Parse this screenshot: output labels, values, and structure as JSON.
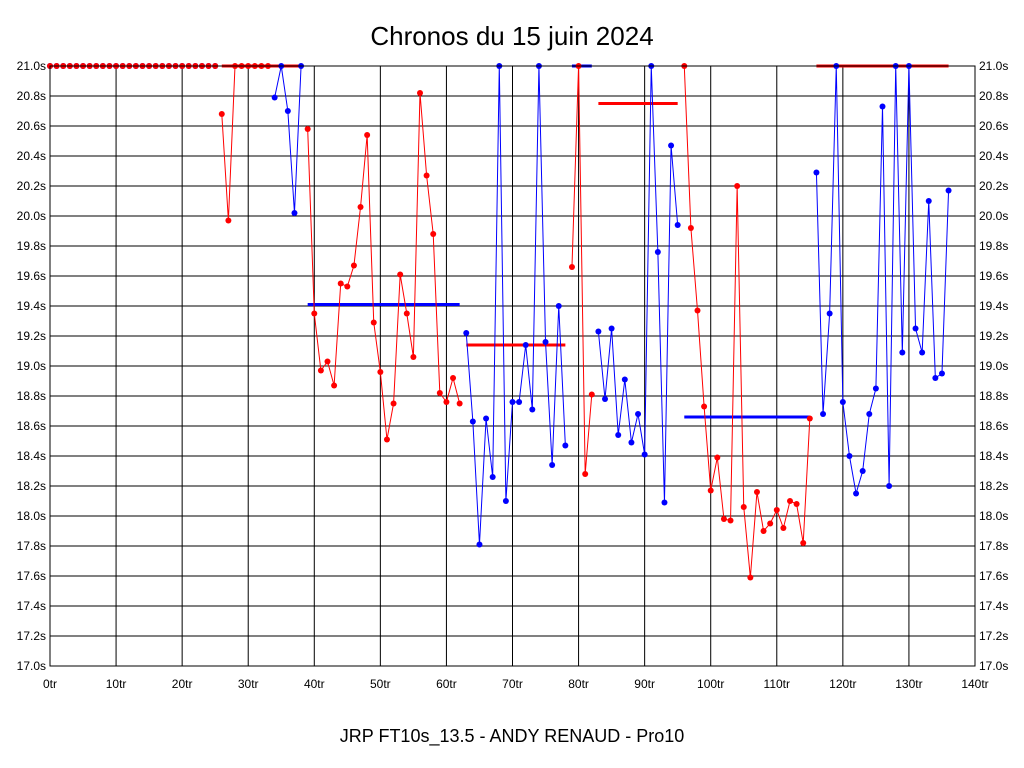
{
  "chart_data": {
    "type": "line",
    "title": "Chronos du 15 juin 2024",
    "subtitle": "JRP FT10s_13.5 - ANDY RENAUD - Pro10",
    "xlim": [
      0,
      140
    ],
    "ylim": [
      17.0,
      21.0
    ],
    "x_ticks": [
      0,
      10,
      20,
      30,
      40,
      50,
      60,
      70,
      80,
      90,
      100,
      110,
      120,
      130,
      140
    ],
    "x_tick_labels": [
      "0tr",
      "10tr",
      "20tr",
      "30tr",
      "40tr",
      "50tr",
      "60tr",
      "70tr",
      "80tr",
      "90tr",
      "100tr",
      "110tr",
      "120tr",
      "130tr",
      "140tr"
    ],
    "y_ticks": [
      17.0,
      17.2,
      17.4,
      17.6,
      17.8,
      18.0,
      18.2,
      18.4,
      18.6,
      18.8,
      19.0,
      19.2,
      19.4,
      19.6,
      19.8,
      20.0,
      20.2,
      20.4,
      20.6,
      20.8,
      21.0
    ],
    "y_tick_labels": [
      "17.0s",
      "17.2s",
      "17.4s",
      "17.6s",
      "17.8s",
      "18.0s",
      "18.2s",
      "18.4s",
      "18.6s",
      "18.8s",
      "19.0s",
      "19.2s",
      "19.4s",
      "19.6s",
      "19.8s",
      "20.0s",
      "20.2s",
      "20.4s",
      "20.6s",
      "20.8s",
      "21.0s"
    ],
    "grid": true,
    "colors": {
      "red": "#ff0000",
      "blue": "#0000ff",
      "axis": "#000000"
    },
    "series": [
      {
        "color": "#0000ff",
        "x": [
          0,
          1,
          2,
          3,
          4,
          5,
          6,
          7,
          8,
          9,
          10,
          11,
          12,
          13,
          14,
          15,
          16,
          17,
          18,
          19,
          20,
          21,
          22,
          23,
          24,
          25
        ],
        "y": [
          21,
          21,
          21,
          21,
          21,
          21,
          21,
          21,
          21,
          21,
          21,
          21,
          21,
          21,
          21,
          21,
          21,
          21,
          21,
          21,
          21,
          21,
          21,
          21,
          21,
          21
        ]
      },
      {
        "color": "#ff0000",
        "x": [
          0,
          1,
          2,
          3,
          4,
          5,
          6,
          7,
          8,
          9,
          10,
          11,
          12,
          13,
          14,
          15,
          16,
          17,
          18,
          19,
          20,
          21,
          22,
          23,
          24,
          25
        ],
        "y": [
          21,
          21,
          21,
          21,
          21,
          21,
          21,
          21,
          21,
          21,
          21,
          21,
          21,
          21,
          21,
          21,
          21,
          21,
          21,
          21,
          21,
          21,
          21,
          21,
          21,
          21
        ]
      },
      {
        "color": "#ff0000",
        "x": [
          26,
          27,
          28,
          29,
          30,
          31,
          32,
          33
        ],
        "y": [
          20.68,
          19.97,
          21.0,
          21.0,
          21.0,
          21.0,
          21.0,
          21.0
        ]
      },
      {
        "color": "#0000ff",
        "x": [
          34,
          35,
          36,
          37,
          38
        ],
        "y": [
          20.79,
          21.0,
          20.7,
          20.02,
          21.0
        ]
      },
      {
        "color": "#ff0000",
        "x": [
          39,
          40,
          41,
          42,
          43,
          44,
          45,
          46,
          47,
          48,
          49,
          50,
          51,
          52,
          53,
          54,
          55,
          56,
          57,
          58,
          59,
          60,
          61,
          62
        ],
        "y": [
          20.58,
          19.35,
          18.97,
          19.03,
          18.87,
          19.55,
          19.53,
          19.67,
          20.06,
          20.54,
          19.29,
          18.96,
          18.51,
          18.75,
          19.61,
          19.35,
          19.06,
          20.82,
          20.27,
          19.88,
          18.82,
          18.76,
          18.92,
          18.75
        ]
      },
      {
        "color": "#0000ff",
        "x": [
          63,
          64,
          65,
          66,
          67,
          68,
          69,
          70,
          71,
          72,
          73,
          74,
          75,
          76,
          77,
          78
        ],
        "y": [
          19.22,
          18.63,
          17.81,
          18.65,
          18.26,
          21.0,
          18.1,
          18.76,
          18.76,
          19.14,
          18.71,
          21.0,
          19.16,
          18.34,
          19.4,
          18.47
        ]
      },
      {
        "color": "#ff0000",
        "x": [
          79,
          80,
          81,
          82
        ],
        "y": [
          19.66,
          21.0,
          18.28,
          18.81
        ]
      },
      {
        "color": "#0000ff",
        "x": [
          83,
          84,
          85,
          86,
          87,
          88,
          89,
          90,
          91,
          92,
          93,
          94,
          95
        ],
        "y": [
          19.23,
          18.78,
          19.25,
          18.54,
          18.91,
          18.49,
          18.68,
          18.41,
          21.0,
          19.76,
          18.09,
          20.47,
          19.94
        ]
      },
      {
        "color": "#ff0000",
        "x": [
          96,
          97,
          98,
          99,
          100,
          101,
          102,
          103,
          104,
          105,
          106,
          107,
          108,
          109,
          110,
          111,
          112,
          113,
          114,
          115
        ],
        "y": [
          21.0,
          19.92,
          19.37,
          18.73,
          18.17,
          18.39,
          17.98,
          17.97,
          20.2,
          18.06,
          17.59,
          18.16,
          17.9,
          17.95,
          18.04,
          17.92,
          18.1,
          18.08,
          17.82,
          18.65
        ]
      },
      {
        "color": "#0000ff",
        "x": [
          116,
          117,
          118,
          119,
          120,
          121,
          122,
          123,
          124,
          125,
          126,
          127,
          128,
          129,
          130,
          131,
          132,
          133,
          134,
          135,
          136
        ],
        "y": [
          20.29,
          18.68,
          19.35,
          21.0,
          18.76,
          18.4,
          18.15,
          18.3,
          18.68,
          18.85,
          20.73,
          18.2,
          21.0,
          19.09,
          21.0,
          19.25,
          19.09,
          20.1,
          18.92,
          18.95,
          20.17
        ]
      }
    ],
    "averages": [
      {
        "color": "#ff0000",
        "x": [
          26,
          38
        ],
        "y": 21.0
      },
      {
        "color": "#0000ff",
        "x": [
          39,
          62
        ],
        "y": 19.41
      },
      {
        "color": "#ff0000",
        "x": [
          63,
          78
        ],
        "y": 19.14
      },
      {
        "color": "#0000ff",
        "x": [
          79,
          82
        ],
        "y": 21.0
      },
      {
        "color": "#ff0000",
        "x": [
          83,
          95
        ],
        "y": 20.75
      },
      {
        "color": "#0000ff",
        "x": [
          96,
          115
        ],
        "y": 18.66
      },
      {
        "color": "#ff0000",
        "x": [
          116,
          136
        ],
        "y": 21.0
      }
    ]
  }
}
